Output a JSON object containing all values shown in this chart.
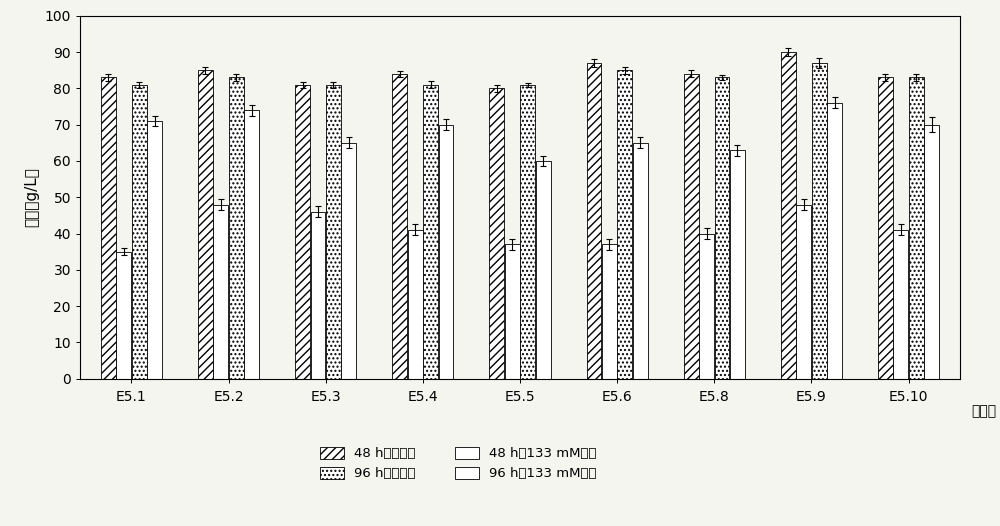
{
  "categories": [
    "E5.1",
    "E5.2",
    "E5.3",
    "E5.4",
    "E5.5",
    "E5.6",
    "E5.8",
    "E5.9",
    "E5.10"
  ],
  "series": {
    "48h_no_acid": [
      83,
      85,
      81,
      84,
      80,
      87,
      84,
      90,
      83
    ],
    "48h_133mM": [
      35,
      48,
      46,
      41,
      37,
      37,
      40,
      48,
      41
    ],
    "96h_no_acid": [
      81,
      83,
      81,
      81,
      81,
      85,
      83,
      87,
      83
    ],
    "96h_133mM": [
      71,
      74,
      65,
      70,
      60,
      65,
      63,
      76,
      70
    ]
  },
  "errors": {
    "48h_no_acid": [
      1.0,
      1.0,
      0.8,
      0.8,
      1.0,
      1.0,
      1.0,
      1.0,
      1.0
    ],
    "48h_133mM": [
      1.0,
      1.5,
      1.5,
      1.5,
      1.5,
      1.5,
      1.5,
      1.5,
      1.5
    ],
    "96h_no_acid": [
      0.8,
      1.0,
      0.8,
      1.0,
      0.5,
      1.0,
      0.8,
      1.5,
      1.0
    ],
    "96h_133mM": [
      1.5,
      1.5,
      1.5,
      1.5,
      1.5,
      1.5,
      1.5,
      1.5,
      2.0
    ]
  },
  "ylabel": "乙醇（g/L）",
  "xlabel_suffix": "突变体",
  "ylim": [
    0,
    100
  ],
  "yticks": [
    0,
    10,
    20,
    30,
    40,
    50,
    60,
    70,
    80,
    90,
    100
  ],
  "legend_labels": [
    "48 h，无乙酸",
    "96 h，无乙酸",
    "48 h，133 mM乙酸",
    "96 h，133 mM乙酸"
  ],
  "hatch_patterns": [
    "////",
    "",
    "....",
    ""
  ],
  "bar_facecolors": [
    "white",
    "white",
    "white",
    "white"
  ],
  "bar_edgecolors": [
    "black",
    "black",
    "black",
    "black"
  ],
  "background_color": "#f5f5f0"
}
